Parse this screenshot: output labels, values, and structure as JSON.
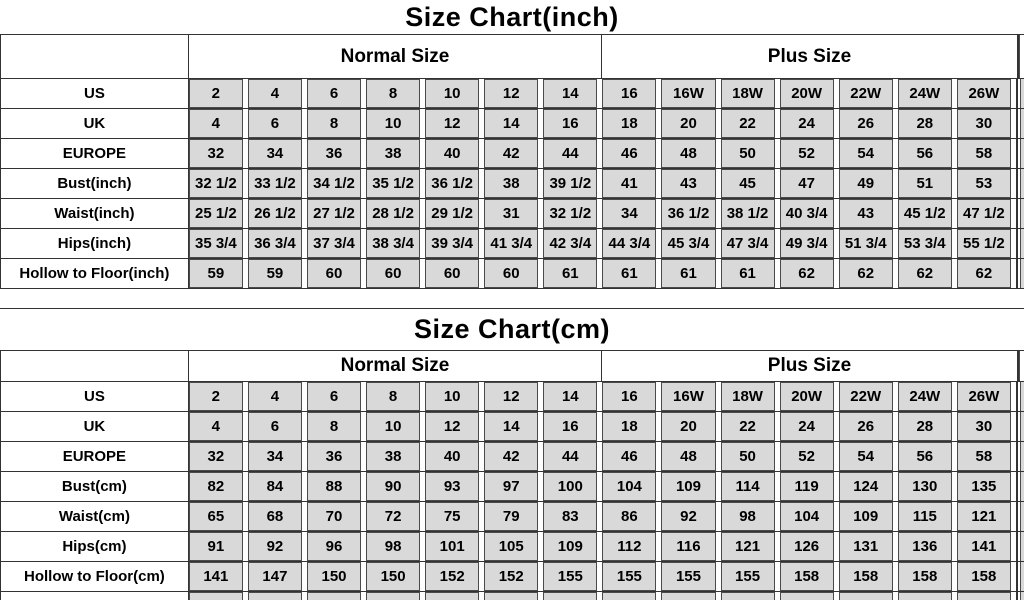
{
  "chart_data": [
    {
      "type": "table",
      "title": "Size Chart(inch)",
      "group_headers": [
        "Normal Size",
        "Plus Size"
      ],
      "normal_size_columns": [
        "2",
        "4",
        "6",
        "8",
        "10",
        "12",
        "14"
      ],
      "plus_size_columns": [
        "16",
        "16W",
        "18W",
        "20W",
        "22W",
        "24W",
        "26W"
      ],
      "rows": [
        {
          "label": "US",
          "values": [
            "2",
            "4",
            "6",
            "8",
            "10",
            "12",
            "14",
            "16",
            "16W",
            "18W",
            "20W",
            "22W",
            "24W",
            "26W"
          ]
        },
        {
          "label": "UK",
          "values": [
            "4",
            "6",
            "8",
            "10",
            "12",
            "14",
            "16",
            "18",
            "20",
            "22",
            "24",
            "26",
            "28",
            "30"
          ]
        },
        {
          "label": "EUROPE",
          "values": [
            "32",
            "34",
            "36",
            "38",
            "40",
            "42",
            "44",
            "46",
            "48",
            "50",
            "52",
            "54",
            "56",
            "58"
          ]
        },
        {
          "label": "Bust(inch)",
          "values": [
            "32 1/2",
            "33 1/2",
            "34 1/2",
            "35 1/2",
            "36 1/2",
            "38",
            "39 1/2",
            "41",
            "43",
            "45",
            "47",
            "49",
            "51",
            "53"
          ]
        },
        {
          "label": "Waist(inch)",
          "values": [
            "25 1/2",
            "26 1/2",
            "27 1/2",
            "28 1/2",
            "29 1/2",
            "31",
            "32 1/2",
            "34",
            "36 1/2",
            "38 1/2",
            "40 3/4",
            "43",
            "45 1/2",
            "47 1/2"
          ]
        },
        {
          "label": "Hips(inch)",
          "values": [
            "35 3/4",
            "36 3/4",
            "37 3/4",
            "38 3/4",
            "39 3/4",
            "41 3/4",
            "42 3/4",
            "44 3/4",
            "45 3/4",
            "47 3/4",
            "49 3/4",
            "51 3/4",
            "53 3/4",
            "55 1/2"
          ]
        },
        {
          "label": "Hollow to Floor(inch)",
          "values": [
            "59",
            "59",
            "60",
            "60",
            "60",
            "60",
            "61",
            "61",
            "61",
            "61",
            "62",
            "62",
            "62",
            "62"
          ]
        }
      ]
    },
    {
      "type": "table",
      "title": "Size Chart(cm)",
      "group_headers": [
        "Normal Size",
        "Plus Size"
      ],
      "normal_size_columns": [
        "2",
        "4",
        "6",
        "8",
        "10",
        "12",
        "14"
      ],
      "plus_size_columns": [
        "16",
        "16W",
        "18W",
        "20W",
        "22W",
        "24W",
        "26W"
      ],
      "rows": [
        {
          "label": "US",
          "values": [
            "2",
            "4",
            "6",
            "8",
            "10",
            "12",
            "14",
            "16",
            "16W",
            "18W",
            "20W",
            "22W",
            "24W",
            "26W"
          ]
        },
        {
          "label": "UK",
          "values": [
            "4",
            "6",
            "8",
            "10",
            "12",
            "14",
            "16",
            "18",
            "20",
            "22",
            "24",
            "26",
            "28",
            "30"
          ]
        },
        {
          "label": "EUROPE",
          "values": [
            "32",
            "34",
            "36",
            "38",
            "40",
            "42",
            "44",
            "46",
            "48",
            "50",
            "52",
            "54",
            "56",
            "58"
          ]
        },
        {
          "label": "Bust(cm)",
          "values": [
            "82",
            "84",
            "88",
            "90",
            "93",
            "97",
            "100",
            "104",
            "109",
            "114",
            "119",
            "124",
            "130",
            "135"
          ]
        },
        {
          "label": "Waist(cm)",
          "values": [
            "65",
            "68",
            "70",
            "72",
            "75",
            "79",
            "83",
            "86",
            "92",
            "98",
            "104",
            "109",
            "115",
            "121"
          ]
        },
        {
          "label": "Hips(cm)",
          "values": [
            "91",
            "92",
            "96",
            "98",
            "101",
            "105",
            "109",
            "112",
            "116",
            "121",
            "126",
            "131",
            "136",
            "141"
          ]
        },
        {
          "label": "Hollow to Floor(cm)",
          "values": [
            "141",
            "147",
            "150",
            "150",
            "152",
            "152",
            "155",
            "155",
            "155",
            "155",
            "158",
            "158",
            "158",
            "158"
          ]
        }
      ]
    }
  ],
  "colors": {
    "cell_fill": "#d9d9d9",
    "grid_line": "#333333",
    "cell_border": "#4a4a4a",
    "text": "#000000",
    "background": "#ffffff"
  }
}
